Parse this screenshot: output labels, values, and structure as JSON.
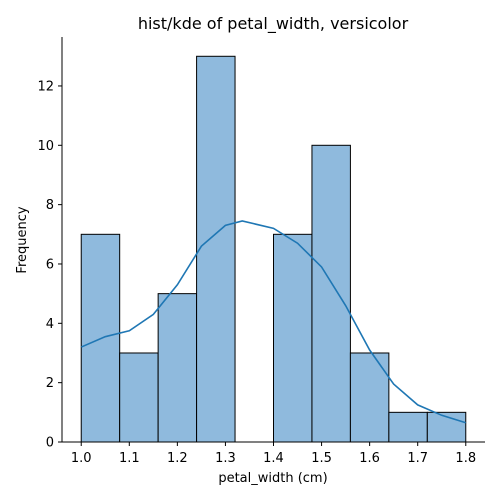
{
  "chart_data": {
    "type": "bar",
    "title": "hist/kde of petal_width, versicolor",
    "xlabel": "petal_width (cm)",
    "ylabel": "Frequency",
    "xlim": [
      0.96,
      1.84
    ],
    "ylim": [
      0,
      13.65
    ],
    "x_ticks": [
      1.0,
      1.1,
      1.2,
      1.3,
      1.4,
      1.5,
      1.6,
      1.7,
      1.8
    ],
    "x_tick_labels": [
      "1.0",
      "1.1",
      "1.2",
      "1.3",
      "1.4",
      "1.5",
      "1.6",
      "1.7",
      "1.8"
    ],
    "y_ticks": [
      0,
      2,
      4,
      6,
      8,
      10,
      12
    ],
    "y_tick_labels": [
      "0",
      "2",
      "4",
      "6",
      "8",
      "10",
      "12"
    ],
    "bins": [
      {
        "start": 1.0,
        "end": 1.08,
        "count": 7
      },
      {
        "start": 1.08,
        "end": 1.16,
        "count": 3
      },
      {
        "start": 1.16,
        "end": 1.24,
        "count": 5
      },
      {
        "start": 1.24,
        "end": 1.32,
        "count": 13
      },
      {
        "start": 1.32,
        "end": 1.4,
        "count": 0
      },
      {
        "start": 1.4,
        "end": 1.48,
        "count": 7
      },
      {
        "start": 1.48,
        "end": 1.56,
        "count": 10
      },
      {
        "start": 1.56,
        "end": 1.64,
        "count": 3
      },
      {
        "start": 1.64,
        "end": 1.72,
        "count": 1
      },
      {
        "start": 1.72,
        "end": 1.8,
        "count": 1
      }
    ],
    "kde": {
      "x": [
        1.0,
        1.05,
        1.1,
        1.15,
        1.2,
        1.25,
        1.3,
        1.335,
        1.4,
        1.45,
        1.5,
        1.55,
        1.6,
        1.65,
        1.7,
        1.75,
        1.8
      ],
      "y": [
        3.2,
        3.55,
        3.75,
        4.3,
        5.3,
        6.6,
        7.3,
        7.45,
        7.2,
        6.7,
        5.9,
        4.6,
        3.1,
        1.95,
        1.25,
        0.9,
        0.65
      ]
    },
    "colors": {
      "bar_fill": "#8fbadd",
      "bar_edge": "#000000",
      "kde_line": "#1f77b4"
    },
    "grid": false,
    "legend": "none"
  }
}
